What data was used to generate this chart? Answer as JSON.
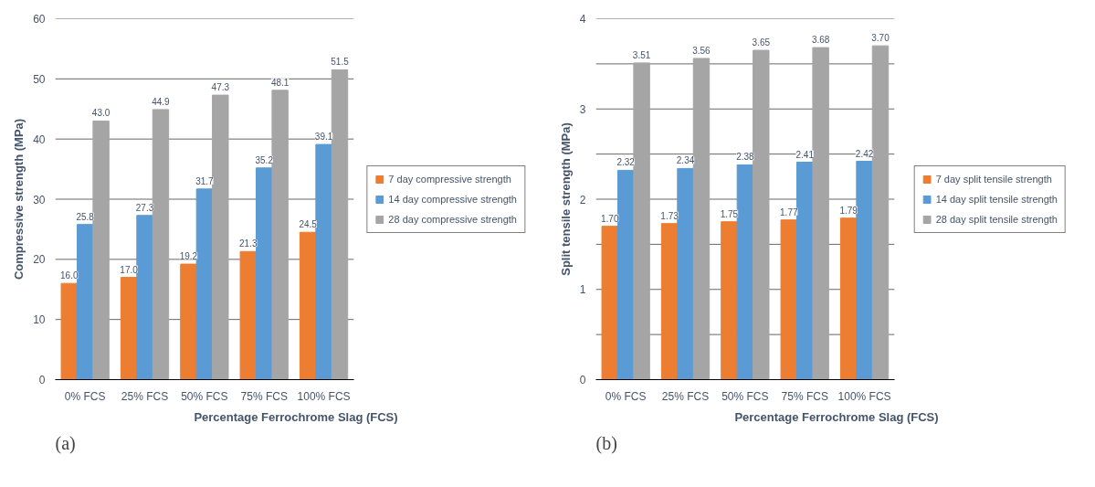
{
  "chart_data": [
    {
      "type": "bar",
      "categories": [
        "0% FCS",
        "25% FCS",
        "50% FCS",
        "75% FCS",
        "100% FCS"
      ],
      "xlabel": "Percentage Ferrochrome Slag (FCS)",
      "ylabel": "Compressive strength (MPa)",
      "ylim": [
        0,
        60
      ],
      "yticks": [
        0,
        10,
        20,
        30,
        40,
        50,
        60
      ],
      "grid": "y",
      "legend": "right",
      "annotations": [
        "(a)"
      ],
      "series": [
        {
          "name": "7 day compressive strength",
          "color": "#ed7d31",
          "values": [
            16.0,
            17.0,
            19.2,
            21.3,
            24.5
          ],
          "value_labels": [
            "16.0",
            "17.0",
            "19.2",
            "21.3",
            "24.5"
          ]
        },
        {
          "name": "14 day compressive strength",
          "color": "#5b9bd5",
          "values": [
            25.8,
            27.3,
            31.7,
            35.2,
            39.1
          ],
          "value_labels": [
            "25.8",
            "27.3",
            "31.7",
            "35.2",
            "39.1"
          ]
        },
        {
          "name": "28 day compressive strength",
          "color": "#a5a5a5",
          "values": [
            43.0,
            44.9,
            47.3,
            48.1,
            51.5
          ],
          "value_labels": [
            "43.0",
            "44.9",
            "47.3",
            "48.1",
            "51.5"
          ]
        }
      ]
    },
    {
      "type": "bar",
      "categories": [
        "0% FCS",
        "25% FCS",
        "50% FCS",
        "75% FCS",
        "100% FCS"
      ],
      "xlabel": "Percentage Ferrochrome Slag (FCS)",
      "ylabel": "Split tensile strength (MPa)",
      "ylim": [
        0,
        4
      ],
      "yticks": [
        0,
        {
          "value": 0.5,
          "label": null
        },
        1,
        {
          "value": 1.5,
          "label": null
        },
        2,
        {
          "value": 2.5,
          "label": null
        },
        3,
        {
          "value": 3.5,
          "label": null
        },
        4
      ],
      "grid": "y",
      "legend": "right",
      "annotations": [
        "(b)"
      ],
      "series": [
        {
          "name": "7 day split tensile strength",
          "color": "#ed7d31",
          "values": [
            1.7,
            1.73,
            1.75,
            1.77,
            1.79
          ],
          "value_labels": [
            "1.70",
            "1.73",
            "1.75",
            "1.77",
            "1.79"
          ]
        },
        {
          "name": "14 day split tensile strength",
          "color": "#5b9bd5",
          "values": [
            2.32,
            2.34,
            2.38,
            2.41,
            2.42
          ],
          "value_labels": [
            "2.32",
            "2.34",
            "2.38",
            "2.41",
            "2.42"
          ]
        },
        {
          "name": "28 day split tensile strength",
          "color": "#a5a5a5",
          "values": [
            3.51,
            3.56,
            3.65,
            3.68,
            3.7
          ],
          "value_labels": [
            "3.51",
            "3.56",
            "3.65",
            "3.68",
            "3.70"
          ]
        }
      ]
    }
  ]
}
